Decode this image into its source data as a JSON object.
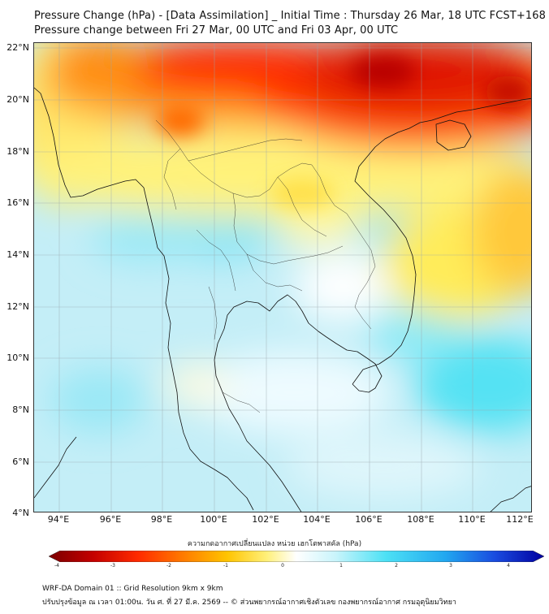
{
  "header": {
    "title_line1": "Pressure Change (hPa) - [Data Assimilation] _ Initial Time : Thursday 26 Mar, 18 UTC FCST+168",
    "title_line2": "Pressure change between Fri 27 Mar, 00 UTC and Fri 03 Apr, 00 UTC"
  },
  "map": {
    "lat_labels": [
      "22°N",
      "20°N",
      "18°N",
      "16°N",
      "14°N",
      "12°N",
      "10°N",
      "8°N",
      "6°N",
      "4°N"
    ],
    "lon_labels": [
      "94°E",
      "96°E",
      "98°E",
      "100°E",
      "102°E",
      "104°E",
      "106°E",
      "108°E",
      "110°E",
      "112°E"
    ],
    "lat_range": [
      4,
      22.2
    ],
    "lon_range": [
      93.1,
      112.5
    ],
    "field": "Pressure change",
    "units": "hPa"
  },
  "colorbar": {
    "title": "ความกดอากาศเปลี่ยนแปลง หน่วย เฮกโตพาสคัล (hPa)",
    "ticks": [
      "-4",
      "-3",
      "-2",
      "-1",
      "0",
      "1",
      "2",
      "3",
      "4"
    ],
    "range": [
      -4,
      4
    ],
    "colors": [
      "#7a0000",
      "#c40000",
      "#ff2a00",
      "#ff7a00",
      "#ffc400",
      "#fff07a",
      "#ffffff",
      "#c8f4fb",
      "#4de1f5",
      "#22a8f0",
      "#1a4ce0",
      "#0000a0"
    ]
  },
  "footer": {
    "line1": "WRF-DA Domain 01 :: Grid Resolution 9km x 9km",
    "line2": "ปรับปรุงข้อมูล ณ เวลา 01:00น. วัน ศ. ที่ 27 มี.ค. 2569 -- © ส่วนพยากรณ์อากาศเชิงตัวเลข กองพยากรณ์อากาศ กรมอุตุนิยมวิทยา"
  }
}
